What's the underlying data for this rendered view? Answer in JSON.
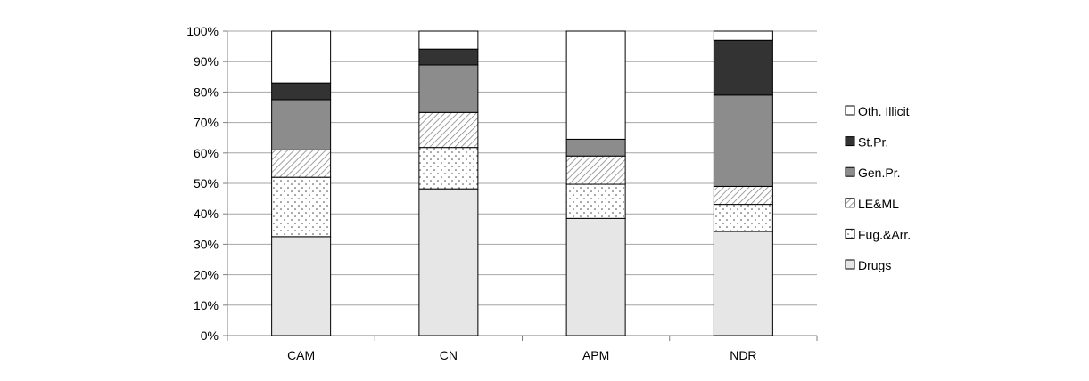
{
  "chart_data": {
    "type": "bar",
    "stacked": true,
    "percent": true,
    "categories": [
      "CAM",
      "CN",
      "APM",
      "NDR"
    ],
    "y_ticks": [
      "0%",
      "10%",
      "20%",
      "30%",
      "40%",
      "50%",
      "60%",
      "70%",
      "80%",
      "90%",
      "100%"
    ],
    "ylim": [
      0,
      100
    ],
    "grid": true,
    "legend_position": "right",
    "series": [
      {
        "name": "Drugs",
        "values": [
          32.5,
          48.2,
          38.5,
          34.2
        ],
        "fill": "#e6e6e6",
        "pattern": "solid"
      },
      {
        "name": "Fug.&Arr.",
        "values": [
          19.5,
          13.6,
          11.2,
          8.9
        ],
        "fill": "#ffffff",
        "pattern": "dots"
      },
      {
        "name": "LE&ML",
        "values": [
          9.0,
          11.5,
          9.3,
          5.9
        ],
        "fill": "#ffffff",
        "pattern": "diagonal"
      },
      {
        "name": "Gen.Pr.",
        "values": [
          16.5,
          15.6,
          5.5,
          30.0
        ],
        "fill": "#8c8c8c",
        "pattern": "solid"
      },
      {
        "name": "St.Pr.",
        "values": [
          5.5,
          5.2,
          0.0,
          18.0
        ],
        "fill": "#333333",
        "pattern": "solid"
      },
      {
        "name": "Oth. Illicit",
        "values": [
          17.0,
          5.9,
          35.5,
          3.0
        ],
        "fill": "#ffffff",
        "pattern": "solid"
      }
    ]
  }
}
